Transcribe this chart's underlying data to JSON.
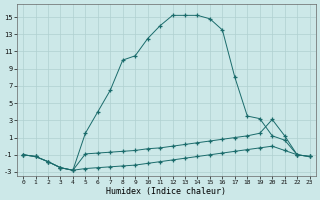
{
  "xlabel": "Humidex (Indice chaleur)",
  "background_color": "#cce8e8",
  "line_color": "#1a6b6b",
  "grid_color": "#b0d0d0",
  "x": [
    0,
    1,
    2,
    3,
    4,
    5,
    6,
    7,
    8,
    9,
    10,
    11,
    12,
    13,
    14,
    15,
    16,
    17,
    18,
    19,
    20,
    21,
    22,
    23
  ],
  "line_main": [
    -1,
    -1.2,
    -1.8,
    -2.5,
    -2.8,
    1.5,
    4.0,
    6.5,
    10.0,
    10.5,
    12.5,
    14.0,
    15.2,
    15.2,
    15.2,
    14.8,
    13.5,
    8.0,
    3.5,
    3.2,
    1.2,
    0.7,
    -1.0,
    -1.2
  ],
  "line_mid": [
    -1,
    -1.2,
    -1.8,
    -2.5,
    -2.8,
    -0.9,
    -0.8,
    -0.7,
    -0.6,
    -0.5,
    -0.3,
    -0.2,
    0.0,
    0.2,
    0.4,
    0.6,
    0.8,
    1.0,
    1.2,
    1.5,
    3.1,
    1.2,
    -1.0,
    -1.2
  ],
  "line_low": [
    -1,
    -1.2,
    -1.8,
    -2.5,
    -2.8,
    -2.6,
    -2.5,
    -2.4,
    -2.3,
    -2.2,
    -2.0,
    -1.8,
    -1.6,
    -1.4,
    -1.2,
    -1.0,
    -0.8,
    -0.6,
    -0.4,
    -0.2,
    0.0,
    -0.5,
    -1.0,
    -1.2
  ],
  "xlim": [
    -0.5,
    23.5
  ],
  "ylim": [
    -3.5,
    16.5
  ],
  "yticks": [
    -3,
    -1,
    1,
    3,
    5,
    7,
    9,
    11,
    13,
    15
  ],
  "xticks": [
    0,
    1,
    2,
    3,
    4,
    5,
    6,
    7,
    8,
    9,
    10,
    11,
    12,
    13,
    14,
    15,
    16,
    17,
    18,
    19,
    20,
    21,
    22,
    23
  ]
}
